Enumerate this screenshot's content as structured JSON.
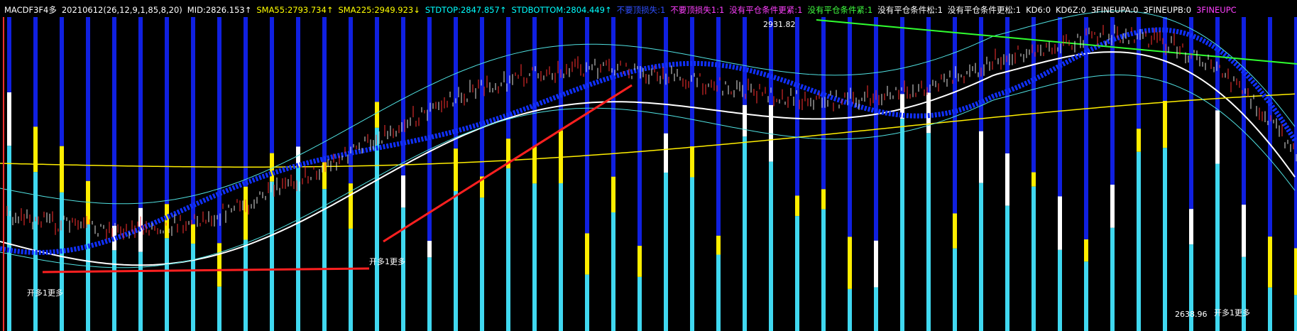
{
  "header": {
    "items": [
      {
        "text": "MACDF3F4多",
        "color": "#ffffff"
      },
      {
        "text": "20210612(26,12,9,1,85,8,20)",
        "color": "#ffffff"
      },
      {
        "text": "MID:2826.153↑",
        "color": "#ffffff"
      },
      {
        "text": "SMA55:2793.734↑",
        "color": "#ffff00"
      },
      {
        "text": "SMA225:2949.923↓",
        "color": "#ffff00"
      },
      {
        "text": "STDTOP:2847.857↑",
        "color": "#00ffff"
      },
      {
        "text": "STDBOTTOM:2804.449↑",
        "color": "#00ffff"
      },
      {
        "text": "不要顶损失:1",
        "color": "#3050ff"
      },
      {
        "text": "不要顶损失1:1",
        "color": "#ff40ff"
      },
      {
        "text": "没有平仓条件更紧:1",
        "color": "#ff40ff"
      },
      {
        "text": "没有平仓条件紧:1",
        "color": "#40ff40"
      },
      {
        "text": "没有平仓条件松:1",
        "color": "#ffffff"
      },
      {
        "text": "没有平仓条件更松:1",
        "color": "#ffffff"
      },
      {
        "text": "KD6:0",
        "color": "#ffffff"
      },
      {
        "text": "KD6Z:0",
        "color": "#ffffff"
      },
      {
        "text": "3FINEUPA:0",
        "color": "#ffffff"
      },
      {
        "text": "3FINEUPB:0",
        "color": "#ffffff"
      },
      {
        "text": "3FINEUPC",
        "color": "#ff40ff"
      }
    ]
  },
  "chart": {
    "high_label": "2931.82",
    "low_label": "2638.96",
    "notes": [
      "开多1更多",
      "开多1更多",
      "开多1更多"
    ]
  }
}
